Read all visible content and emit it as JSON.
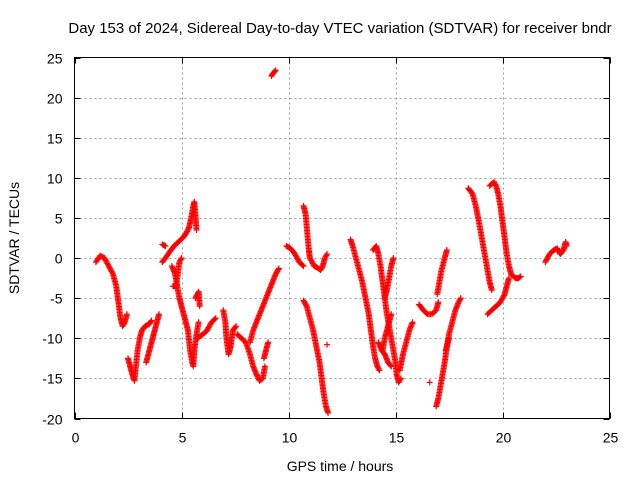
{
  "chart_data": {
    "type": "scatter",
    "title": "Day 153 of 2024, Sidereal Day-to-day VTEC variation (SDTVAR) for receiver bndr",
    "xlabel": "GPS time / hours",
    "ylabel": "SDTVAR / TECUs",
    "xlim": [
      0,
      25
    ],
    "ylim": [
      -20,
      25
    ],
    "xticks": [
      0,
      5,
      10,
      15,
      20,
      25
    ],
    "yticks": [
      -20,
      -15,
      -10,
      -5,
      0,
      5,
      10,
      15,
      20,
      25
    ],
    "grid": true,
    "marker": "+",
    "color": "#ff0000",
    "series": [
      {
        "name": "s1",
        "points": [
          [
            1.0,
            -0.5
          ],
          [
            1.2,
            0.3
          ],
          [
            1.4,
            0.0
          ],
          [
            1.6,
            -1.0
          ],
          [
            1.8,
            -2.0
          ],
          [
            1.95,
            -3.5
          ],
          [
            2.05,
            -5.5
          ],
          [
            2.15,
            -7.5
          ],
          [
            2.25,
            -8.5
          ],
          [
            2.35,
            -8.0
          ],
          [
            2.45,
            -7.0
          ]
        ]
      },
      {
        "name": "s2",
        "points": [
          [
            2.5,
            -12.5
          ],
          [
            2.6,
            -13.5
          ],
          [
            2.7,
            -14.5
          ],
          [
            2.8,
            -15.3
          ],
          [
            2.85,
            -14.0
          ],
          [
            2.95,
            -11.5
          ],
          [
            3.05,
            -10.0
          ],
          [
            3.15,
            -9.0
          ],
          [
            3.3,
            -8.5
          ],
          [
            3.5,
            -8.2
          ],
          [
            3.6,
            -7.8
          ]
        ]
      },
      {
        "name": "s3",
        "points": [
          [
            3.35,
            -13.0
          ],
          [
            3.45,
            -12.0
          ],
          [
            3.55,
            -11.0
          ],
          [
            3.65,
            -10.0
          ],
          [
            3.75,
            -9.0
          ],
          [
            3.85,
            -8.0
          ],
          [
            3.95,
            -7.0
          ]
        ]
      },
      {
        "name": "s4",
        "points": [
          [
            4.1,
            -0.5
          ],
          [
            4.25,
            0.0
          ],
          [
            4.45,
            0.8
          ],
          [
            4.65,
            1.5
          ],
          [
            4.85,
            2.0
          ],
          [
            5.05,
            2.5
          ],
          [
            5.2,
            3.0
          ],
          [
            5.35,
            3.8
          ],
          [
            5.45,
            5.0
          ],
          [
            5.55,
            6.5
          ],
          [
            5.6,
            7.0
          ],
          [
            5.65,
            5.5
          ],
          [
            5.7,
            3.5
          ]
        ]
      },
      {
        "name": "s5",
        "points": [
          [
            4.1,
            1.7
          ],
          [
            4.25,
            1.5
          ]
        ]
      },
      {
        "name": "s6",
        "points": [
          [
            4.55,
            -1.0
          ],
          [
            4.7,
            -2.0
          ],
          [
            4.8,
            -3.5
          ],
          [
            4.9,
            -5.0
          ],
          [
            5.0,
            -6.0
          ],
          [
            5.1,
            -7.0
          ],
          [
            5.2,
            -8.0
          ],
          [
            5.3,
            -9.0
          ],
          [
            5.4,
            -11.5
          ],
          [
            5.5,
            -13.0
          ],
          [
            5.55,
            -13.5
          ],
          [
            5.6,
            -11.5
          ],
          [
            5.7,
            -9.5
          ],
          [
            5.8,
            -8.0
          ]
        ]
      },
      {
        "name": "s7",
        "points": [
          [
            4.6,
            -3.5
          ],
          [
            4.75,
            -3.5
          ],
          [
            4.9,
            -0.5
          ],
          [
            5.0,
            0.0
          ]
        ]
      },
      {
        "name": "s8",
        "points": [
          [
            5.75,
            -10.0
          ],
          [
            6.0,
            -9.5
          ],
          [
            6.2,
            -9.0
          ],
          [
            6.4,
            -8.0
          ],
          [
            6.6,
            -7.5
          ]
        ]
      },
      {
        "name": "s9",
        "points": [
          [
            5.65,
            -5.0
          ],
          [
            5.8,
            -4.2
          ],
          [
            5.85,
            -6.0
          ]
        ]
      },
      {
        "name": "s10",
        "points": [
          [
            6.95,
            -6.5
          ],
          [
            7.05,
            -8.0
          ],
          [
            7.1,
            -10.0
          ],
          [
            7.2,
            -12.0
          ],
          [
            7.3,
            -11.0
          ],
          [
            7.4,
            -9.0
          ],
          [
            7.55,
            -8.5
          ]
        ]
      },
      {
        "name": "s11",
        "points": [
          [
            7.6,
            -9.5
          ],
          [
            7.8,
            -10.0
          ],
          [
            8.0,
            -10.5
          ],
          [
            8.2,
            -12.0
          ],
          [
            8.35,
            -13.5
          ],
          [
            8.5,
            -14.5
          ],
          [
            8.65,
            -15.3
          ],
          [
            8.8,
            -15.0
          ],
          [
            8.9,
            -13.5
          ]
        ]
      },
      {
        "name": "s12",
        "points": [
          [
            8.2,
            -10.5
          ],
          [
            8.35,
            -9.0
          ],
          [
            8.5,
            -8.0
          ],
          [
            8.65,
            -7.0
          ],
          [
            8.8,
            -6.0
          ],
          [
            8.95,
            -5.0
          ],
          [
            9.1,
            -4.0
          ],
          [
            9.25,
            -3.0
          ],
          [
            9.4,
            -2.0
          ],
          [
            9.55,
            -1.3
          ]
        ]
      },
      {
        "name": "s13",
        "points": [
          [
            8.85,
            -12.5
          ],
          [
            8.95,
            -11.5
          ],
          [
            9.05,
            -10.5
          ]
        ]
      },
      {
        "name": "s14",
        "points": [
          [
            9.2,
            22.7
          ],
          [
            9.3,
            23.1
          ],
          [
            9.4,
            23.4
          ]
        ]
      },
      {
        "name": "s15",
        "points": [
          [
            9.9,
            1.5
          ],
          [
            10.1,
            1.2
          ],
          [
            10.3,
            0.5
          ],
          [
            10.5,
            -0.5
          ],
          [
            10.7,
            -1.0
          ]
        ]
      },
      {
        "name": "s16",
        "points": [
          [
            10.7,
            6.5
          ],
          [
            10.8,
            5.5
          ],
          [
            10.85,
            4.0
          ],
          [
            10.9,
            2.5
          ],
          [
            10.95,
            1.0
          ],
          [
            11.0,
            0.0
          ],
          [
            11.1,
            -0.5
          ],
          [
            11.2,
            -1.0
          ],
          [
            11.35,
            -1.2
          ],
          [
            11.5,
            -1.5
          ],
          [
            11.6,
            -1.0
          ],
          [
            11.7,
            0.0
          ],
          [
            11.8,
            0.5
          ]
        ]
      },
      {
        "name": "s17",
        "points": [
          [
            10.7,
            -5.3
          ],
          [
            10.85,
            -6.0
          ],
          [
            11.0,
            -7.5
          ],
          [
            11.15,
            -9.0
          ],
          [
            11.3,
            -11.0
          ],
          [
            11.45,
            -13.0
          ],
          [
            11.55,
            -15.0
          ],
          [
            11.65,
            -17.0
          ],
          [
            11.75,
            -18.5
          ],
          [
            11.85,
            -19.3
          ]
        ]
      },
      {
        "name": "s18",
        "points": [
          [
            11.8,
            -10.8
          ]
        ]
      },
      {
        "name": "s19",
        "points": [
          [
            12.9,
            2.3
          ],
          [
            13.0,
            1.5
          ],
          [
            13.15,
            0.0
          ],
          [
            13.3,
            -1.5
          ],
          [
            13.45,
            -3.0
          ],
          [
            13.6,
            -5.0
          ],
          [
            13.75,
            -7.0
          ],
          [
            13.85,
            -9.0
          ],
          [
            13.95,
            -11.0
          ],
          [
            14.05,
            -12.5
          ],
          [
            14.15,
            -13.5
          ],
          [
            14.25,
            -14.0
          ]
        ]
      },
      {
        "name": "s20",
        "points": [
          [
            13.95,
            1.0
          ],
          [
            14.1,
            1.5
          ],
          [
            14.2,
            0.5
          ],
          [
            14.3,
            -1.0
          ],
          [
            14.4,
            -3.0
          ],
          [
            14.5,
            -5.0
          ],
          [
            14.6,
            -7.0
          ],
          [
            14.7,
            -8.5
          ],
          [
            14.8,
            -10.0
          ],
          [
            14.9,
            -11.5
          ],
          [
            15.0,
            -13.0
          ],
          [
            15.05,
            -14.5
          ],
          [
            15.15,
            -15.5
          ],
          [
            15.25,
            -15.0
          ]
        ]
      },
      {
        "name": "s21",
        "points": [
          [
            14.2,
            -10.5
          ],
          [
            14.35,
            -11.5
          ],
          [
            14.5,
            -12.0
          ],
          [
            14.65,
            -13.0
          ],
          [
            14.8,
            -13.5
          ]
        ]
      },
      {
        "name": "s22",
        "points": [
          [
            14.5,
            -5.0
          ],
          [
            14.6,
            -4.0
          ],
          [
            14.7,
            -2.5
          ],
          [
            14.8,
            -1.0
          ],
          [
            14.9,
            0.0
          ]
        ]
      },
      {
        "name": "s23",
        "points": [
          [
            14.4,
            -11.5
          ],
          [
            14.5,
            -10.0
          ],
          [
            14.6,
            -9.0
          ],
          [
            14.7,
            -8.0
          ],
          [
            14.8,
            -7.0
          ]
        ]
      },
      {
        "name": "s24",
        "points": [
          [
            15.2,
            -14.0
          ],
          [
            15.35,
            -12.0
          ],
          [
            15.5,
            -10.5
          ],
          [
            15.65,
            -9.0
          ],
          [
            15.8,
            -8.0
          ]
        ]
      },
      {
        "name": "s25",
        "points": [
          [
            16.1,
            -5.8
          ],
          [
            16.3,
            -6.5
          ],
          [
            16.5,
            -7.0
          ],
          [
            16.7,
            -7.0
          ],
          [
            16.9,
            -6.5
          ],
          [
            17.0,
            -5.5
          ]
        ]
      },
      {
        "name": "s26",
        "points": [
          [
            16.9,
            -18.5
          ],
          [
            17.0,
            -17.5
          ],
          [
            17.1,
            -16.0
          ],
          [
            17.2,
            -14.5
          ],
          [
            17.3,
            -13.0
          ],
          [
            17.4,
            -11.0
          ],
          [
            17.5,
            -9.5
          ],
          [
            17.65,
            -8.0
          ],
          [
            17.8,
            -6.5
          ],
          [
            17.95,
            -5.5
          ],
          [
            18.05,
            -5.0
          ]
        ]
      },
      {
        "name": "s27",
        "points": [
          [
            16.95,
            -4.5
          ],
          [
            17.05,
            -3.0
          ],
          [
            17.15,
            -1.5
          ],
          [
            17.3,
            0.0
          ],
          [
            17.4,
            1.0
          ]
        ]
      },
      {
        "name": "s28",
        "points": [
          [
            17.35,
            -11.5
          ],
          [
            17.4,
            -11.0
          ],
          [
            17.5,
            -10.0
          ]
        ]
      },
      {
        "name": "s29",
        "points": [
          [
            16.6,
            -15.5
          ]
        ]
      },
      {
        "name": "s30",
        "points": [
          [
            18.4,
            8.7
          ],
          [
            18.6,
            8.0
          ],
          [
            18.75,
            6.5
          ],
          [
            18.9,
            4.5
          ],
          [
            19.0,
            3.0
          ],
          [
            19.1,
            1.5
          ],
          [
            19.2,
            0.0
          ],
          [
            19.3,
            -1.5
          ],
          [
            19.4,
            -3.0
          ],
          [
            19.5,
            -4.0
          ]
        ]
      },
      {
        "name": "s31",
        "points": [
          [
            19.4,
            9.0
          ],
          [
            19.6,
            9.5
          ],
          [
            19.7,
            9.0
          ],
          [
            19.8,
            8.0
          ],
          [
            19.9,
            6.5
          ],
          [
            20.0,
            4.5
          ],
          [
            20.1,
            2.5
          ],
          [
            20.2,
            0.5
          ],
          [
            20.3,
            -1.0
          ],
          [
            20.4,
            -2.0
          ],
          [
            20.6,
            -2.5
          ],
          [
            20.75,
            -2.5
          ],
          [
            20.85,
            -2.3
          ]
        ]
      },
      {
        "name": "s32",
        "points": [
          [
            19.3,
            -7.0
          ],
          [
            19.5,
            -6.5
          ],
          [
            19.7,
            -6.0
          ],
          [
            19.9,
            -5.5
          ],
          [
            20.1,
            -4.5
          ],
          [
            20.2,
            -3.5
          ],
          [
            20.3,
            -2.5
          ]
        ]
      },
      {
        "name": "s33",
        "points": [
          [
            22.0,
            -0.5
          ],
          [
            22.2,
            0.5
          ],
          [
            22.4,
            1.0
          ],
          [
            22.55,
            1.2
          ],
          [
            22.7,
            0.5
          ],
          [
            22.85,
            1.0
          ],
          [
            22.95,
            2.0
          ],
          [
            23.0,
            1.5
          ]
        ]
      }
    ]
  }
}
